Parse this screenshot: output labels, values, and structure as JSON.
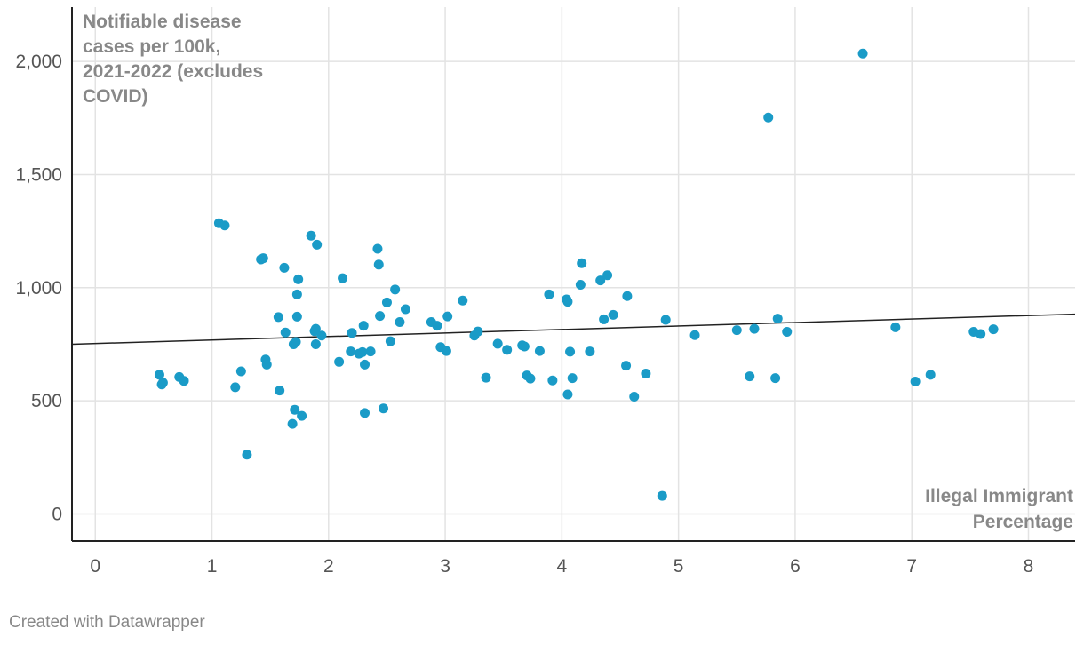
{
  "chart_data": {
    "type": "scatter",
    "ylabel_lines": [
      "Notifiable disease",
      "cases per 100k,",
      "2021-2022 (excludes",
      "COVID)"
    ],
    "xlabel_lines": [
      "Illegal Immigrant",
      "Percentage"
    ],
    "xlim": [
      -0.2,
      8.4
    ],
    "ylim": [
      -120,
      2240
    ],
    "x_ticks": [
      0,
      1,
      2,
      3,
      4,
      5,
      6,
      7,
      8
    ],
    "x_tick_labels": [
      "0",
      "1",
      "2",
      "3",
      "4",
      "5",
      "6",
      "7",
      "8"
    ],
    "y_ticks": [
      0,
      500,
      1000,
      1500,
      2000
    ],
    "y_tick_labels": [
      "0",
      "500",
      "1,000",
      "1,500",
      "2,000"
    ],
    "grid": true,
    "trendline": {
      "x": [
        -0.2,
        8.4
      ],
      "y": [
        750,
        883
      ]
    },
    "points": [
      [
        0.55,
        615
      ],
      [
        0.57,
        572
      ],
      [
        0.58,
        580
      ],
      [
        0.72,
        605
      ],
      [
        0.76,
        588
      ],
      [
        1.06,
        1285
      ],
      [
        1.11,
        1275
      ],
      [
        1.2,
        560
      ],
      [
        1.25,
        630
      ],
      [
        1.3,
        262
      ],
      [
        1.42,
        1125
      ],
      [
        1.44,
        1130
      ],
      [
        1.46,
        682
      ],
      [
        1.47,
        660
      ],
      [
        1.57,
        870
      ],
      [
        1.58,
        545
      ],
      [
        1.62,
        1088
      ],
      [
        1.63,
        802
      ],
      [
        1.69,
        398
      ],
      [
        1.7,
        750
      ],
      [
        1.71,
        460
      ],
      [
        1.72,
        760
      ],
      [
        1.73,
        872
      ],
      [
        1.73,
        970
      ],
      [
        1.74,
        1037
      ],
      [
        1.77,
        433
      ],
      [
        1.85,
        1230
      ],
      [
        1.88,
        808
      ],
      [
        1.89,
        818
      ],
      [
        1.89,
        750
      ],
      [
        1.9,
        1190
      ],
      [
        1.94,
        788
      ],
      [
        2.09,
        672
      ],
      [
        2.12,
        1042
      ],
      [
        2.19,
        718
      ],
      [
        2.2,
        800
      ],
      [
        2.26,
        708
      ],
      [
        2.29,
        715
      ],
      [
        2.3,
        832
      ],
      [
        2.31,
        660
      ],
      [
        2.31,
        446
      ],
      [
        2.36,
        718
      ],
      [
        2.42,
        1172
      ],
      [
        2.43,
        1102
      ],
      [
        2.44,
        875
      ],
      [
        2.47,
        466
      ],
      [
        2.5,
        935
      ],
      [
        2.53,
        763
      ],
      [
        2.57,
        992
      ],
      [
        2.61,
        848
      ],
      [
        2.66,
        905
      ],
      [
        2.88,
        848
      ],
      [
        2.93,
        832
      ],
      [
        2.96,
        737
      ],
      [
        3.01,
        720
      ],
      [
        3.02,
        873
      ],
      [
        3.15,
        943
      ],
      [
        3.25,
        788
      ],
      [
        3.28,
        806
      ],
      [
        3.35,
        602
      ],
      [
        3.45,
        752
      ],
      [
        3.53,
        725
      ],
      [
        3.66,
        745
      ],
      [
        3.68,
        740
      ],
      [
        3.7,
        612
      ],
      [
        3.73,
        598
      ],
      [
        3.81,
        720
      ],
      [
        3.89,
        970
      ],
      [
        3.92,
        590
      ],
      [
        4.04,
        948
      ],
      [
        4.05,
        528
      ],
      [
        4.05,
        938
      ],
      [
        4.07,
        717
      ],
      [
        4.09,
        600
      ],
      [
        4.16,
        1013
      ],
      [
        4.17,
        1108
      ],
      [
        4.24,
        718
      ],
      [
        4.33,
        1032
      ],
      [
        4.36,
        860
      ],
      [
        4.39,
        1055
      ],
      [
        4.44,
        880
      ],
      [
        4.55,
        655
      ],
      [
        4.56,
        963
      ],
      [
        4.62,
        518
      ],
      [
        4.72,
        620
      ],
      [
        4.86,
        80
      ],
      [
        4.89,
        858
      ],
      [
        5.14,
        790
      ],
      [
        5.5,
        812
      ],
      [
        5.61,
        608
      ],
      [
        5.65,
        818
      ],
      [
        5.77,
        1752
      ],
      [
        5.83,
        600
      ],
      [
        5.85,
        863
      ],
      [
        5.93,
        805
      ],
      [
        6.58,
        2035
      ],
      [
        6.86,
        825
      ],
      [
        7.03,
        585
      ],
      [
        7.16,
        615
      ],
      [
        7.53,
        805
      ],
      [
        7.59,
        795
      ],
      [
        7.7,
        816
      ]
    ]
  },
  "footer": {
    "credit": "Created with Datawrapper"
  }
}
